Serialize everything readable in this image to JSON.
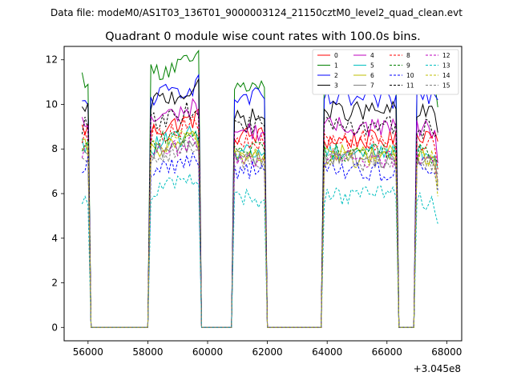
{
  "figure": {
    "suptitle": "Data file: modeM0/AS1T03_136T01_9000003124_21150cztM0_level2_quad_clean.evt"
  },
  "chart_data": {
    "type": "line",
    "title": "Quadrant 0 module wise count rates with 100.0s bins.",
    "xlabel": "",
    "ylabel": "",
    "x_offset_label": "+3.045e8",
    "xlim": [
      55200,
      68500
    ],
    "ylim": [
      -0.6,
      12.6
    ],
    "x_ticks": [
      56000,
      58000,
      60000,
      62000,
      64000,
      66000,
      68000
    ],
    "y_ticks": [
      0,
      2,
      4,
      6,
      8,
      10,
      12
    ],
    "legend_position": "top-right",
    "segments": [
      {
        "start": 55800,
        "end": 56000
      },
      {
        "start": 58100,
        "end": 59700
      },
      {
        "start": 60900,
        "end": 61900
      },
      {
        "start": 63900,
        "end": 66300
      },
      {
        "start": 67000,
        "end": 67700
      }
    ],
    "gaps": [
      {
        "start": 56100,
        "end": 58000
      },
      {
        "start": 59800,
        "end": 60800
      },
      {
        "start": 62000,
        "end": 63800
      },
      {
        "start": 66400,
        "end": 66900
      }
    ],
    "gap_value": 0,
    "series": [
      {
        "name": "0",
        "color": "#ff0000",
        "dash": "solid",
        "levels": [
          8.9,
          8.8,
          8.6,
          8.4,
          8.7
        ]
      },
      {
        "name": "1",
        "color": "#008000",
        "dash": "solid",
        "levels": [
          11.2,
          11.4,
          10.8,
          11.1,
          10.9
        ]
      },
      {
        "name": "2",
        "color": "#0000ff",
        "dash": "solid",
        "levels": [
          9.9,
          10.3,
          10.3,
          10.2,
          10.4
        ]
      },
      {
        "name": "3",
        "color": "#000000",
        "dash": "solid",
        "levels": [
          9.6,
          10.1,
          9.4,
          9.7,
          9.6
        ]
      },
      {
        "name": "4",
        "color": "#bf00bf",
        "dash": "solid",
        "levels": [
          9.1,
          9.3,
          8.8,
          9.0,
          8.9
        ]
      },
      {
        "name": "5",
        "color": "#00bfbf",
        "dash": "solid",
        "levels": [
          8.1,
          8.1,
          7.9,
          7.9,
          7.8
        ]
      },
      {
        "name": "6",
        "color": "#bfbf00",
        "dash": "solid",
        "levels": [
          8.0,
          7.9,
          7.8,
          7.8,
          7.7
        ]
      },
      {
        "name": "7",
        "color": "#808080",
        "dash": "solid",
        "levels": [
          7.6,
          7.7,
          7.7,
          7.6,
          7.4
        ]
      },
      {
        "name": "8",
        "color": "#ff0000",
        "dash": "dashed",
        "levels": [
          8.7,
          8.6,
          8.2,
          8.4,
          8.3
        ]
      },
      {
        "name": "9",
        "color": "#008000",
        "dash": "dashed",
        "levels": [
          8.3,
          8.2,
          8.0,
          7.9,
          7.8
        ]
      },
      {
        "name": "10",
        "color": "#0000ff",
        "dash": "dashed",
        "levels": [
          7.3,
          7.0,
          7.1,
          7.0,
          7.2
        ]
      },
      {
        "name": "11",
        "color": "#000000",
        "dash": "dashed",
        "levels": [
          9.0,
          9.2,
          9.1,
          9.0,
          8.9
        ]
      },
      {
        "name": "12",
        "color": "#bf00bf",
        "dash": "dashed",
        "levels": [
          7.9,
          7.7,
          7.6,
          7.6,
          7.5
        ]
      },
      {
        "name": "13",
        "color": "#00bfbf",
        "dash": "dashed",
        "levels": [
          5.8,
          6.1,
          5.8,
          5.9,
          5.6
        ]
      },
      {
        "name": "14",
        "color": "#bfbf00",
        "dash": "dashed",
        "levels": [
          8.2,
          8.0,
          7.7,
          7.6,
          7.5
        ]
      },
      {
        "name": "15",
        "color": "#808080",
        "dash": "dashed",
        "levels": [
          7.8,
          7.6,
          7.5,
          7.4,
          7.3
        ]
      }
    ]
  }
}
